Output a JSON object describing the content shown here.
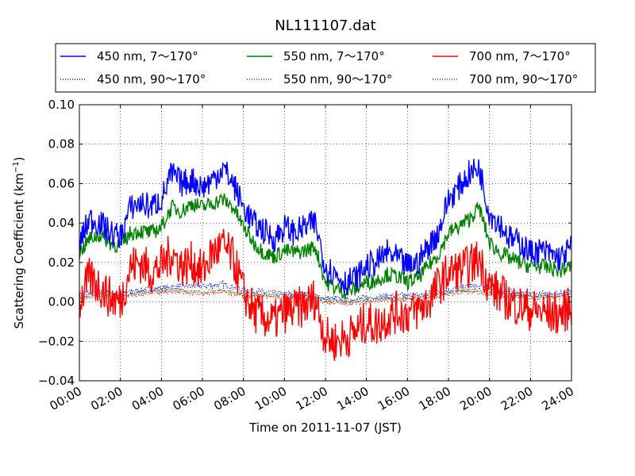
{
  "chart_data": {
    "type": "line",
    "title": "NL111107.dat",
    "xlabel": "Time on 2011-11-07 (JST)",
    "ylabel_main": "Scattering Coefficient (km",
    "ylabel_sup": "−1",
    "ylabel_close": ")",
    "xlim_hours": [
      0,
      24
    ],
    "ylim": [
      -0.04,
      0.1
    ],
    "x_ticks": [
      "00:00",
      "02:00",
      "04:00",
      "06:00",
      "08:00",
      "10:00",
      "12:00",
      "14:00",
      "16:00",
      "18:00",
      "20:00",
      "22:00",
      "24:00"
    ],
    "y_ticks": [
      "−0.04",
      "−0.02",
      "0.00",
      "0.02",
      "0.04",
      "0.06",
      "0.08",
      "0.10"
    ],
    "grid": true,
    "legend_position": "top, above plot, 3 columns",
    "series": [
      {
        "name": "450 nm, 7～170°",
        "color": "#0000ff",
        "style": "solid",
        "x": [
          0,
          0.5,
          1,
          1.5,
          2,
          2.5,
          3,
          3.5,
          4,
          4.5,
          5,
          5.5,
          6,
          6.5,
          7,
          7.5,
          8,
          8.5,
          9,
          9.5,
          10,
          10.5,
          11,
          11.5,
          12,
          12.5,
          13,
          13.5,
          14,
          14.5,
          15,
          15.5,
          16,
          16.5,
          17,
          17.5,
          18,
          18.5,
          19,
          19.5,
          20,
          20.5,
          21,
          21.5,
          22,
          22.5,
          23,
          23.5,
          24
        ],
        "y": [
          0.03,
          0.042,
          0.04,
          0.035,
          0.033,
          0.048,
          0.05,
          0.048,
          0.052,
          0.065,
          0.06,
          0.062,
          0.058,
          0.062,
          0.068,
          0.06,
          0.048,
          0.04,
          0.036,
          0.032,
          0.038,
          0.035,
          0.038,
          0.04,
          0.018,
          0.014,
          0.01,
          0.012,
          0.018,
          0.02,
          0.025,
          0.022,
          0.018,
          0.02,
          0.028,
          0.035,
          0.052,
          0.058,
          0.065,
          0.068,
          0.045,
          0.04,
          0.032,
          0.03,
          0.025,
          0.026,
          0.024,
          0.022,
          0.028
        ]
      },
      {
        "name": "550 nm, 7～170°",
        "color": "#008000",
        "style": "solid",
        "x": [
          0,
          0.5,
          1,
          1.5,
          2,
          2.5,
          3,
          3.5,
          4,
          4.5,
          5,
          5.5,
          6,
          6.5,
          7,
          7.5,
          8,
          8.5,
          9,
          9.5,
          10,
          10.5,
          11,
          11.5,
          12,
          12.5,
          13,
          13.5,
          14,
          14.5,
          15,
          15.5,
          16,
          16.5,
          17,
          17.5,
          18,
          18.5,
          19,
          19.5,
          20,
          20.5,
          21,
          21.5,
          22,
          22.5,
          23,
          23.5,
          24
        ],
        "y": [
          0.025,
          0.032,
          0.034,
          0.03,
          0.028,
          0.035,
          0.036,
          0.035,
          0.038,
          0.048,
          0.046,
          0.05,
          0.048,
          0.05,
          0.052,
          0.048,
          0.038,
          0.03,
          0.025,
          0.023,
          0.026,
          0.025,
          0.026,
          0.028,
          0.01,
          0.007,
          0.005,
          0.007,
          0.01,
          0.011,
          0.014,
          0.013,
          0.01,
          0.012,
          0.018,
          0.024,
          0.035,
          0.038,
          0.042,
          0.048,
          0.03,
          0.025,
          0.022,
          0.02,
          0.018,
          0.018,
          0.017,
          0.016,
          0.018
        ]
      },
      {
        "name": "700 nm, 7～170°",
        "color": "#ff0000",
        "style": "solid",
        "x": [
          0,
          0.5,
          1,
          1.5,
          2,
          2.5,
          3,
          3.5,
          4,
          4.5,
          5,
          5.5,
          6,
          6.5,
          7,
          7.5,
          8,
          8.5,
          9,
          9.5,
          10,
          10.5,
          11,
          11.5,
          12,
          12.5,
          13,
          13.5,
          14,
          14.5,
          15,
          15.5,
          16,
          16.5,
          17,
          17.5,
          18,
          18.5,
          19,
          19.5,
          20,
          20.5,
          21,
          21.5,
          22,
          22.5,
          23,
          23.5,
          24
        ],
        "y": [
          0.0,
          0.012,
          0.008,
          0.002,
          0.0,
          0.018,
          0.02,
          0.015,
          0.018,
          0.025,
          0.018,
          0.02,
          0.015,
          0.025,
          0.028,
          0.022,
          0.005,
          -0.005,
          -0.008,
          -0.01,
          -0.005,
          -0.004,
          -0.002,
          0.002,
          -0.018,
          -0.02,
          -0.018,
          -0.015,
          -0.01,
          -0.012,
          -0.008,
          -0.005,
          -0.006,
          -0.004,
          0.0,
          0.008,
          0.015,
          0.016,
          0.018,
          0.022,
          0.008,
          0.004,
          0.0,
          -0.002,
          -0.004,
          -0.005,
          -0.006,
          -0.006,
          -0.002
        ]
      },
      {
        "name": "450 nm, 90～170°",
        "color": "#0000ff",
        "style": "dotted",
        "x": [
          0,
          1,
          2,
          3,
          4,
          5,
          6,
          7,
          8,
          9,
          10,
          11,
          12,
          13,
          14,
          15,
          16,
          17,
          18,
          19,
          20,
          21,
          22,
          23,
          24
        ],
        "y": [
          0.004,
          0.005,
          0.004,
          0.006,
          0.007,
          0.008,
          0.008,
          0.009,
          0.006,
          0.005,
          0.004,
          0.004,
          0.002,
          0.001,
          0.002,
          0.003,
          0.003,
          0.004,
          0.006,
          0.008,
          0.007,
          0.005,
          0.004,
          0.004,
          0.005
        ]
      },
      {
        "name": "550 nm, 90～170°",
        "color": "#008000",
        "style": "dotted",
        "x": [
          0,
          1,
          2,
          3,
          4,
          5,
          6,
          7,
          8,
          9,
          10,
          11,
          12,
          13,
          14,
          15,
          16,
          17,
          18,
          19,
          20,
          21,
          22,
          23,
          24
        ],
        "y": [
          0.003,
          0.004,
          0.003,
          0.005,
          0.006,
          0.006,
          0.005,
          0.006,
          0.004,
          0.004,
          0.003,
          0.003,
          0.001,
          0.0,
          0.001,
          0.002,
          0.002,
          0.003,
          0.005,
          0.006,
          0.005,
          0.004,
          0.003,
          0.003,
          0.004
        ]
      },
      {
        "name": "700 nm, 90～170°",
        "color": "#ff0000",
        "style": "dotted",
        "x": [
          0,
          1,
          2,
          3,
          4,
          5,
          6,
          7,
          8,
          9,
          10,
          11,
          12,
          13,
          14,
          15,
          16,
          17,
          18,
          19,
          20,
          21,
          22,
          23,
          24
        ],
        "y": [
          0.002,
          0.003,
          0.002,
          0.004,
          0.005,
          0.005,
          0.004,
          0.005,
          0.003,
          0.003,
          0.002,
          0.002,
          0.0,
          -0.001,
          0.0,
          0.001,
          0.001,
          0.002,
          0.004,
          0.005,
          0.004,
          0.003,
          0.002,
          0.002,
          0.003
        ]
      }
    ]
  }
}
